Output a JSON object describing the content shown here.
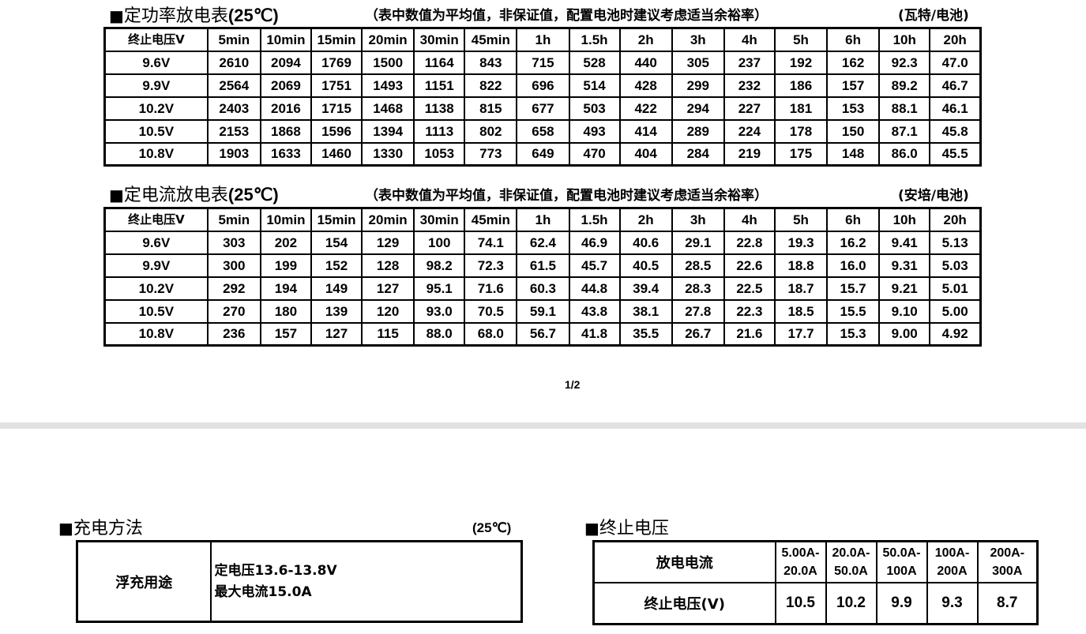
{
  "power_table": {
    "title_square": "■",
    "title_text": "定功率放电表",
    "title_temp": "(25℃)",
    "note": "（表中数值为平均值，非保证值，配置电池时建议考虑适当余裕率）",
    "unit": "(瓦特/电池)",
    "header": [
      "终止电压V",
      "5min",
      "10min",
      "15min",
      "20min",
      "30min",
      "45min",
      "1h",
      "1.5h",
      "2h",
      "3h",
      "4h",
      "5h",
      "6h",
      "10h",
      "20h"
    ],
    "rows": [
      [
        "9.6V",
        "2610",
        "2094",
        "1769",
        "1500",
        "1164",
        "843",
        "715",
        "528",
        "440",
        "305",
        "237",
        "192",
        "162",
        "92.3",
        "47.0"
      ],
      [
        "9.9V",
        "2564",
        "2069",
        "1751",
        "1493",
        "1151",
        "822",
        "696",
        "514",
        "428",
        "299",
        "232",
        "186",
        "157",
        "89.2",
        "46.7"
      ],
      [
        "10.2V",
        "2403",
        "2016",
        "1715",
        "1468",
        "1138",
        "815",
        "677",
        "503",
        "422",
        "294",
        "227",
        "181",
        "153",
        "88.1",
        "46.1"
      ],
      [
        "10.5V",
        "2153",
        "1868",
        "1596",
        "1394",
        "1113",
        "802",
        "658",
        "493",
        "414",
        "289",
        "224",
        "178",
        "150",
        "87.1",
        "45.8"
      ],
      [
        "10.8V",
        "1903",
        "1633",
        "1460",
        "1330",
        "1053",
        "773",
        "649",
        "470",
        "404",
        "284",
        "219",
        "175",
        "148",
        "86.0",
        "45.5"
      ]
    ]
  },
  "current_table": {
    "title_square": "■",
    "title_text": "定电流放电表",
    "title_temp": "(25℃)",
    "note": "（表中数值为平均值，非保证值，配置电池时建议考虑适当余裕率）",
    "unit": "(安培/电池)",
    "header": [
      "终止电压V",
      "5min",
      "10min",
      "15min",
      "20min",
      "30min",
      "45min",
      "1h",
      "1.5h",
      "2h",
      "3h",
      "4h",
      "5h",
      "6h",
      "10h",
      "20h"
    ],
    "rows": [
      [
        "9.6V",
        "303",
        "202",
        "154",
        "129",
        "100",
        "74.1",
        "62.4",
        "46.9",
        "40.6",
        "29.1",
        "22.8",
        "19.3",
        "16.2",
        "9.41",
        "5.13"
      ],
      [
        "9.9V",
        "300",
        "199",
        "152",
        "128",
        "98.2",
        "72.3",
        "61.5",
        "45.7",
        "40.5",
        "28.5",
        "22.6",
        "18.8",
        "16.0",
        "9.31",
        "5.03"
      ],
      [
        "10.2V",
        "292",
        "194",
        "149",
        "127",
        "95.1",
        "71.6",
        "60.3",
        "44.8",
        "39.4",
        "28.3",
        "22.5",
        "18.7",
        "15.7",
        "9.21",
        "5.01"
      ],
      [
        "10.5V",
        "270",
        "180",
        "139",
        "120",
        "93.0",
        "70.5",
        "59.1",
        "43.8",
        "38.1",
        "27.8",
        "22.3",
        "18.5",
        "15.5",
        "9.10",
        "5.00"
      ],
      [
        "10.8V",
        "236",
        "157",
        "127",
        "115",
        "88.0",
        "68.0",
        "56.7",
        "41.8",
        "35.5",
        "26.7",
        "21.6",
        "17.7",
        "15.3",
        "9.00",
        "4.92"
      ]
    ]
  },
  "page_number": "1/2",
  "charge": {
    "title_square": "■",
    "title_text": "充电方法",
    "temp": "(25℃)",
    "label": "浮充用途",
    "line1": "定电压13.6-13.8V",
    "line2": "最大电流15.0A"
  },
  "cutoff": {
    "title_square": "■",
    "title_text": "终止电压",
    "row1_label": "放电电流",
    "row2_label": "终止电压(V)",
    "ranges": [
      [
        "5.00A-",
        "20.0A"
      ],
      [
        "20.0A-",
        "50.0A"
      ],
      [
        "50.0A-",
        "100A"
      ],
      [
        "100A-",
        "200A"
      ],
      [
        "200A-",
        "300A"
      ]
    ],
    "values": [
      "10.5",
      "10.2",
      "9.9",
      "9.3",
      "8.7"
    ]
  },
  "colors": {
    "divider": "#e2e2e2",
    "text": "#000000"
  }
}
